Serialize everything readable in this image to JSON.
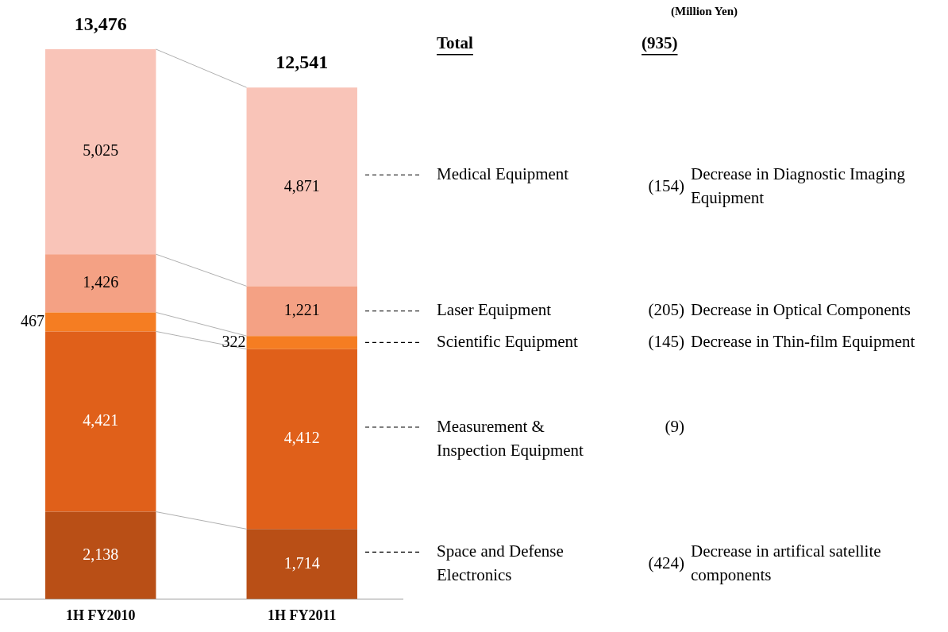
{
  "chart_data": {
    "type": "bar",
    "stacked": true,
    "categories": [
      "1H FY2010",
      "1H FY2011"
    ],
    "series": [
      {
        "name": "Space and Defense Electronics",
        "color": "#b94f16",
        "values": [
          2138,
          1714
        ],
        "value_labels": [
          "2,138",
          "1,714"
        ]
      },
      {
        "name": "Measurement & Inspection Equipment",
        "color": "#e0601a",
        "values": [
          4421,
          4412
        ],
        "value_labels": [
          "4,421",
          "4,412"
        ]
      },
      {
        "name": "Scientific Equipment",
        "color": "#f57d22",
        "values": [
          467,
          322
        ],
        "value_labels": [
          "467",
          "322"
        ]
      },
      {
        "name": "Laser Equipment",
        "color": "#f4a184",
        "values": [
          1426,
          1221
        ],
        "value_labels": [
          "1,426",
          "1,221"
        ]
      },
      {
        "name": "Medical Equipment",
        "color": "#f9c4b8",
        "values": [
          5025,
          4871
        ],
        "value_labels": [
          "5,025",
          "4,871"
        ]
      }
    ],
    "totals": [
      "13,476",
      "12,541"
    ],
    "legend": false,
    "grid": false,
    "tick_labels": "x",
    "annotations": [
      "(Million Yen)",
      "Total",
      "(935)",
      "(424) Decrease in artifical satellite components",
      "(9)",
      "(145) Decrease in Thin-film Equipment",
      "(205) Decrease in Optical Components",
      "(154) Decrease in Diagnostic Imaging Equipment"
    ]
  }
}
